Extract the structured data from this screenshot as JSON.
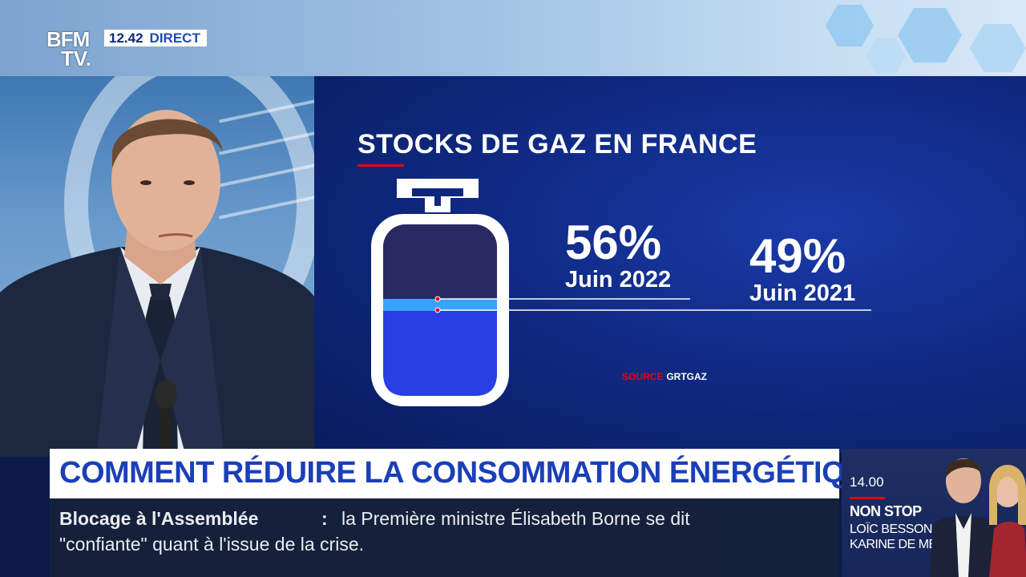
{
  "channel": {
    "logo_line1": "BFM",
    "logo_line2": "TV.",
    "time": "12.42",
    "live_label": "DIRECT"
  },
  "infographic": {
    "title": "STOCKS DE GAZ EN FRANCE",
    "values": [
      {
        "percent": "56%",
        "label": "Juin 2022",
        "fill_fraction": 0.56
      },
      {
        "percent": "49%",
        "label": "Juin 2021",
        "fill_fraction": 0.49
      }
    ],
    "source_key": "SOURCE",
    "source_value": "GRTGAZ"
  },
  "headline": "COMMENT RÉDUIRE LA CONSOMMATION ÉNERGÉTIQUE ?",
  "ticker": {
    "topic": "Blocage à l'Assemblée",
    "colon": ":",
    "line1": "la Première ministre Élisabeth Borne se dit",
    "line2": "\"confiante\" quant à l'issue de la crise."
  },
  "next_program": {
    "time": "14.00",
    "show": "NON STOP",
    "host1": "LOÏC BESSON",
    "host2": "KARINE DE MÉNONVILLE"
  },
  "colors": {
    "brand_red": "#e30613",
    "brand_blue": "#1b3fb8",
    "panel_blue": "#102a84",
    "gas_fill": "#2a3ee6",
    "gas_dark": "#2a2a63"
  }
}
